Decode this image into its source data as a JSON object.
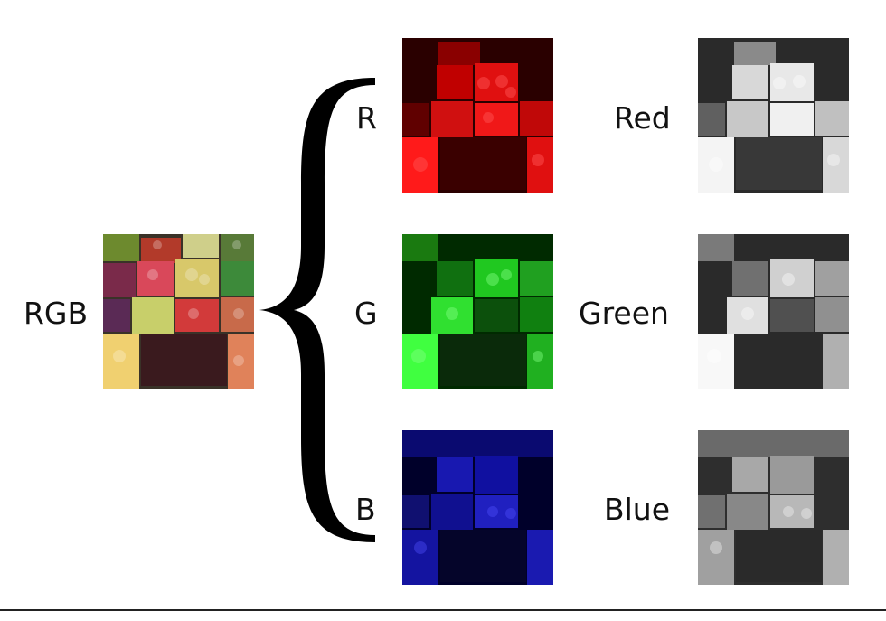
{
  "source": {
    "label": "RGB"
  },
  "channels": [
    {
      "letter": "R",
      "name": "Red",
      "tint": "#ff2020"
    },
    {
      "letter": "G",
      "name": "Green",
      "tint": "#22ff22"
    },
    {
      "letter": "B",
      "name": "Blue",
      "tint": "#2828ff"
    }
  ],
  "colors": {
    "bracket": "#000000",
    "background": "#ffffff",
    "text": "#111111"
  },
  "icons": {
    "bracket": "left-curly-brace"
  }
}
